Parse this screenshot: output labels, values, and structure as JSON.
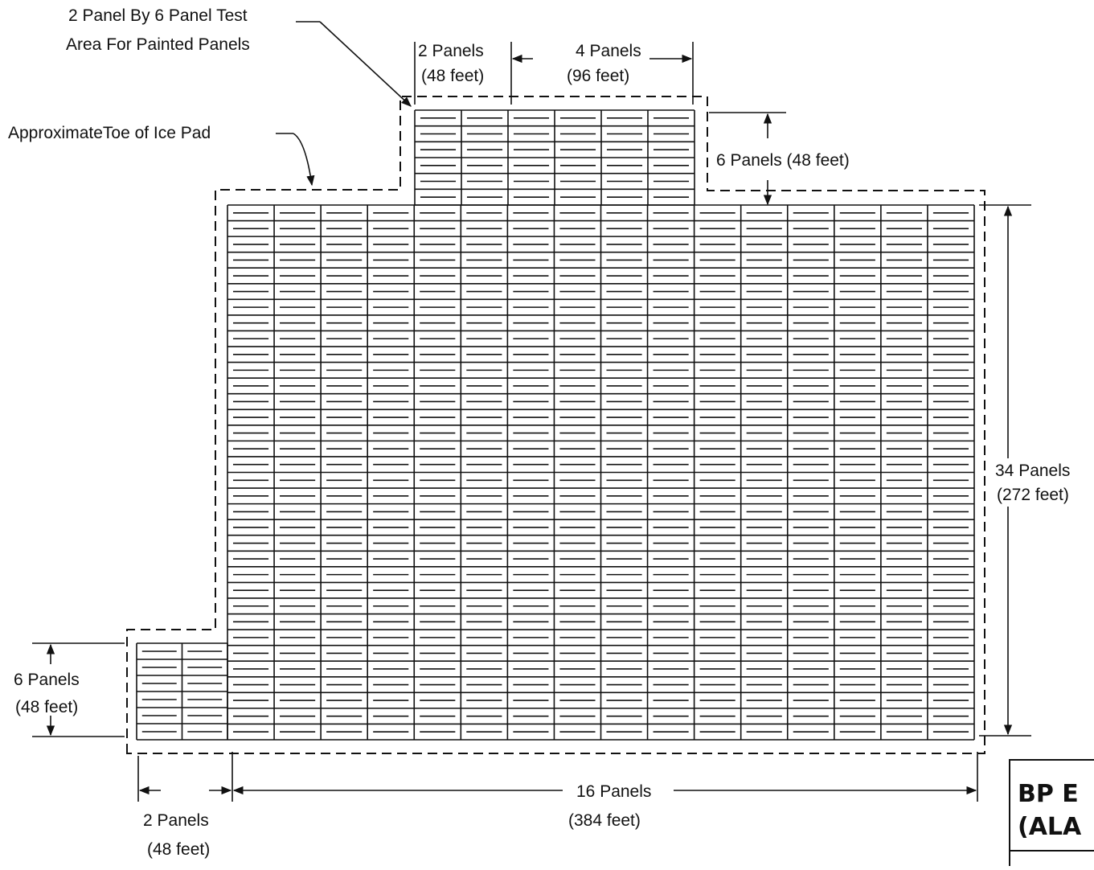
{
  "labels": {
    "test_area_line1": "2 Panel By 6 Panel Test",
    "test_area_line2": "Area For Painted Panels",
    "ice_pad_toe": "ApproximateToe of Ice Pad",
    "top_2_panels": "2 Panels",
    "top_2_feet": "(48 feet)",
    "top_4_panels": "4 Panels",
    "top_4_feet": "(96 feet)",
    "right_6": "6 Panels  (48 feet)",
    "right_34_panels": "34 Panels",
    "right_34_feet": "(272 feet)",
    "left_6_panels": "6 Panels",
    "left_6_feet": "(48 feet)",
    "bottom_2_panels": "2 Panels",
    "bottom_2_feet": "(48 feet)",
    "bottom_16_panels": "16 Panels",
    "bottom_16_feet": "(384 feet)"
  },
  "title_block": {
    "line1": "BP E",
    "line2": "(ALA"
  },
  "grid": {
    "main_columns": 16,
    "main_rows": 34,
    "test_area_columns": 6,
    "test_area_rows": 6,
    "left_extension_columns": 2,
    "left_extension_rows": 6,
    "sub_rows_per_panel": 2
  },
  "colors": {
    "ink": "#111111",
    "paper": "#ffffff"
  }
}
